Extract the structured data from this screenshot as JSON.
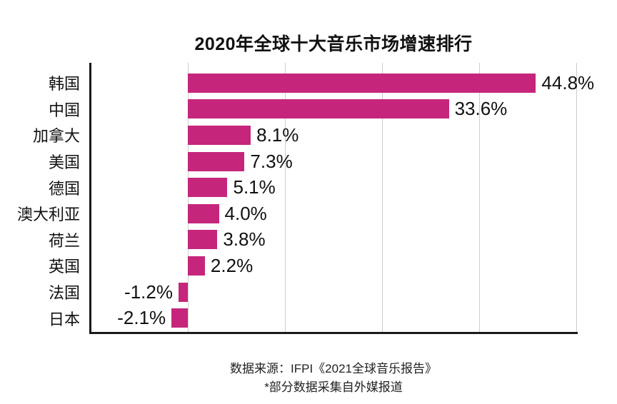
{
  "title": "2020年全球十大音乐市场增速排行",
  "footer": {
    "line1": "数据来源：IFPI《2021全球音乐报告》",
    "line2": "*部分数据采集自外媒报道"
  },
  "colors": {
    "bar": "#c5267b",
    "axis": "#1a1a1a",
    "gridline": "#cccccc",
    "text": "#111111"
  },
  "chart_data": {
    "type": "bar",
    "orientation": "horizontal",
    "title": "2020年全球十大音乐市场增速排行",
    "categories": [
      "韩国",
      "中国",
      "加拿大",
      "美国",
      "德国",
      "澳大利亚",
      "荷兰",
      "英国",
      "法国",
      "日本"
    ],
    "values": [
      44.8,
      33.6,
      8.1,
      7.3,
      5.1,
      4.0,
      3.8,
      2.2,
      -1.2,
      -2.1
    ],
    "value_labels": [
      "44.8%",
      "33.6%",
      "8.1%",
      "7.3%",
      "5.1%",
      "4.0%",
      "3.8%",
      "2.2%",
      "-1.2%",
      "-2.1%"
    ],
    "xlabel": "",
    "ylabel": "",
    "xlim": [
      -12.5,
      50
    ],
    "gridlines_at": [
      0,
      12.5,
      25,
      37.5,
      50
    ],
    "grid": true,
    "legend": false,
    "source_note": "数据来源：IFPI《2021全球音乐报告》",
    "disclaimer": "*部分数据采集自外媒报道"
  }
}
